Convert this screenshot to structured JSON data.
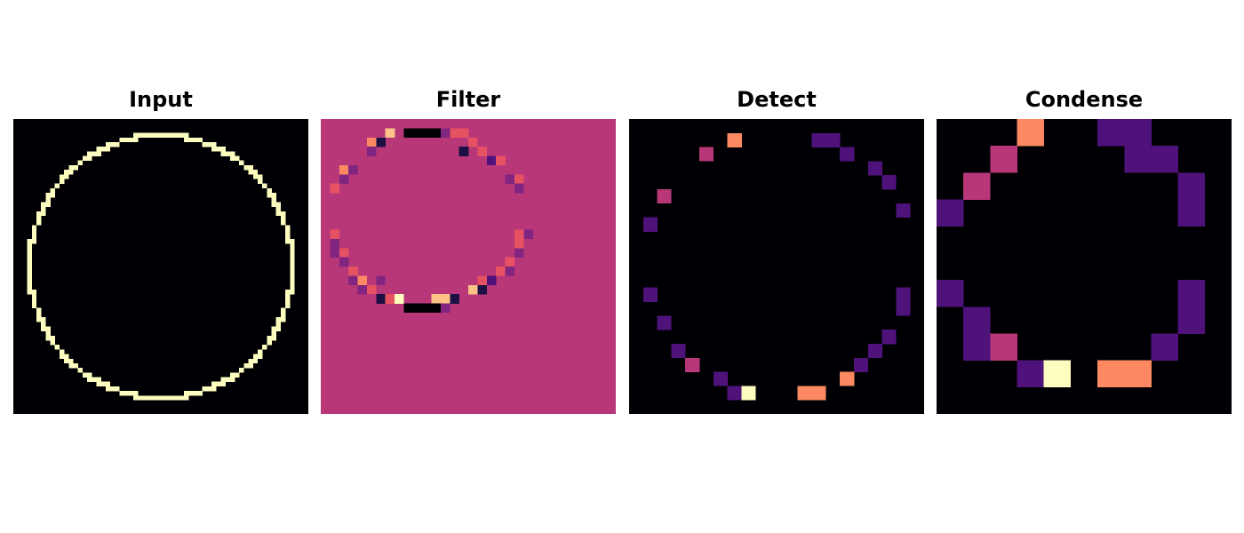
{
  "panels": [
    {
      "title": "Input"
    },
    {
      "title": "Filter"
    },
    {
      "title": "Detect"
    },
    {
      "title": "Condense"
    }
  ],
  "colors": {
    "input_background": "#000004",
    "input_ring": "#fcfdbf",
    "filter_background": "#b73779",
    "detect_background": "#000004",
    "condense_background": "#000004"
  },
  "colormap": "magma"
}
